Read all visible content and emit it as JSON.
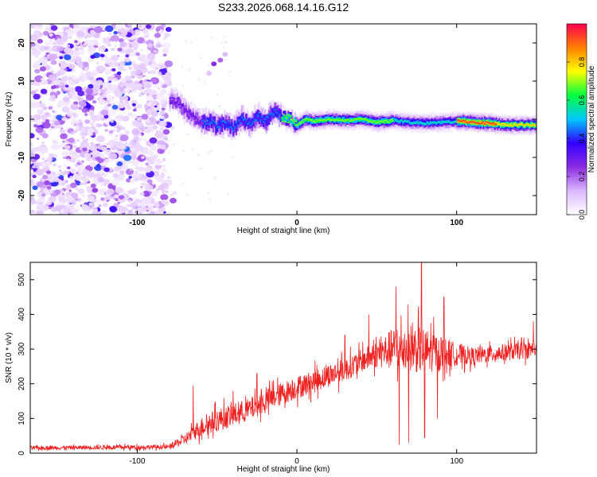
{
  "figure_title": "S233.2026.068.14.16.G12",
  "chart_data": [
    {
      "type": "heatmap",
      "title": "S233.2026.068.14.16.G12",
      "xlabel": "Height of straight line (km)",
      "ylabel": "Frequency (Hz)",
      "xlim": [
        -167,
        150
      ],
      "ylim": [
        -25,
        25
      ],
      "x_ticks": [
        -100,
        0,
        100
      ],
      "y_ticks": [
        -20,
        -10,
        0,
        10,
        20
      ],
      "colorbar": {
        "label": "Normalized spectral amplitude",
        "range": [
          0,
          1
        ],
        "ticks": [
          0.0,
          0.2,
          0.4,
          0.6,
          0.8
        ],
        "colors": [
          "#ffffff",
          "#dcb8ff",
          "#8a2be2",
          "#3300ff",
          "#00c8ff",
          "#00ff40",
          "#ffff00",
          "#ff8000",
          "#ff0050"
        ]
      },
      "noise_region": {
        "x_range": [
          -167,
          -80
        ],
        "y_range": [
          -25,
          25
        ],
        "typical_amplitude": 0.12
      },
      "ridge": {
        "description": "frequency track of signal peak",
        "points": [
          {
            "x": -80,
            "freq": 5.0
          },
          {
            "x": -75,
            "freq": 4.5
          },
          {
            "x": -70,
            "freq": 2.0
          },
          {
            "x": -65,
            "freq": 0.5
          },
          {
            "x": -60,
            "freq": -1.0
          },
          {
            "x": -55,
            "freq": -0.5
          },
          {
            "x": -50,
            "freq": -2.0
          },
          {
            "x": -45,
            "freq": -1.0
          },
          {
            "x": -40,
            "freq": -2.5
          },
          {
            "x": -35,
            "freq": 0.5
          },
          {
            "x": -30,
            "freq": -1.5
          },
          {
            "x": -25,
            "freq": 1.0
          },
          {
            "x": -20,
            "freq": -0.5
          },
          {
            "x": -15,
            "freq": 2.0
          },
          {
            "x": -10,
            "freq": 0.5
          },
          {
            "x": -5,
            "freq": 0.0
          },
          {
            "x": 0,
            "freq": -1.5
          },
          {
            "x": 5,
            "freq": 0.0
          },
          {
            "x": 10,
            "freq": -0.5
          },
          {
            "x": 20,
            "freq": 0.0
          },
          {
            "x": 30,
            "freq": -0.3
          },
          {
            "x": 40,
            "freq": 0.0
          },
          {
            "x": 50,
            "freq": -0.8
          },
          {
            "x": 60,
            "freq": -0.3
          },
          {
            "x": 70,
            "freq": -0.8
          },
          {
            "x": 80,
            "freq": -1.0
          },
          {
            "x": 90,
            "freq": -0.8
          },
          {
            "x": 100,
            "freq": -0.5
          },
          {
            "x": 110,
            "freq": -0.8
          },
          {
            "x": 120,
            "freq": -1.0
          },
          {
            "x": 130,
            "freq": -1.5
          },
          {
            "x": 140,
            "freq": -1.5
          },
          {
            "x": 150,
            "freq": -1.5
          }
        ],
        "peak_amplitude_segments": [
          {
            "x_range": [
              -80,
              -60
            ],
            "amplitude": 0.3
          },
          {
            "x_range": [
              -60,
              -10
            ],
            "amplitude": 0.45
          },
          {
            "x_range": [
              -10,
              60
            ],
            "amplitude": 0.7
          },
          {
            "x_range": [
              60,
              100
            ],
            "amplitude": 0.55
          },
          {
            "x_range": [
              100,
              125
            ],
            "amplitude": 0.95
          },
          {
            "x_range": [
              125,
              150
            ],
            "amplitude": 0.8
          }
        ]
      }
    },
    {
      "type": "line",
      "xlabel": "Height of straight line (km)",
      "ylabel": "SNR (10 * v/v)",
      "xlim": [
        -167,
        150
      ],
      "ylim": [
        0,
        550
      ],
      "x_ticks": [
        -100,
        0,
        100
      ],
      "y_ticks": [
        0,
        100,
        200,
        300,
        400,
        500
      ],
      "series": [
        {
          "name": "SNR",
          "color": "#ee2020",
          "envelope": {
            "x": [
              -167,
              -80,
              -70,
              -60,
              -50,
              -40,
              -30,
              -20,
              -10,
              0,
              10,
              20,
              30,
              40,
              50,
              60,
              70,
              80,
              90,
              100,
              110,
              120,
              130,
              140,
              150
            ],
            "mean": [
              15,
              18,
              40,
              75,
              95,
              110,
              125,
              150,
              170,
              190,
              205,
              225,
              240,
              265,
              285,
              300,
              305,
              295,
              290,
              285,
              280,
              285,
              290,
              295,
              300
            ],
            "spread": [
              10,
              12,
              30,
              50,
              60,
              60,
              60,
              60,
              60,
              60,
              60,
              60,
              60,
              60,
              70,
              110,
              130,
              120,
              90,
              60,
              45,
              45,
              45,
              45,
              45
            ]
          },
          "notable_peaks": [
            {
              "x": -65,
              "y": 195
            },
            {
              "x": -40,
              "y": 180
            },
            {
              "x": -25,
              "y": 230
            },
            {
              "x": 30,
              "y": 340
            },
            {
              "x": 45,
              "y": 400
            },
            {
              "x": 62,
              "y": 480
            },
            {
              "x": 78,
              "y": 550
            },
            {
              "x": 92,
              "y": 450
            },
            {
              "x": 148,
              "y": 380
            }
          ],
          "notable_dips": [
            {
              "x": 64,
              "y": 25
            },
            {
              "x": 70,
              "y": 30
            },
            {
              "x": 80,
              "y": 45
            },
            {
              "x": 88,
              "y": 100
            }
          ]
        }
      ]
    }
  ]
}
